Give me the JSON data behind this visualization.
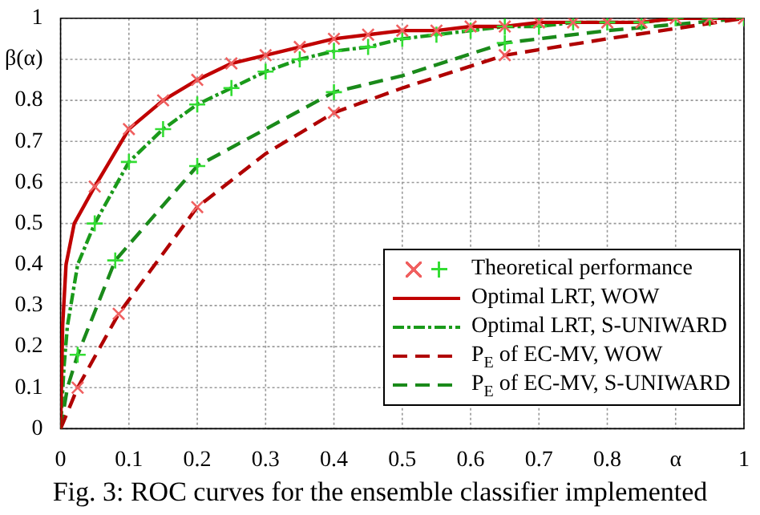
{
  "chart_data": {
    "type": "line",
    "xlim": [
      0,
      1
    ],
    "xticks": [
      0,
      0.1,
      0.2,
      0.3,
      0.4,
      0.5,
      0.6,
      0.7,
      0.8,
      {
        "value": 0.9,
        "label": "α"
      },
      1
    ],
    "ylim": [
      0,
      1
    ],
    "yticks": [
      0,
      0.1,
      0.2,
      0.3,
      0.4,
      0.5,
      0.6,
      0.7,
      0.8,
      {
        "value": 0.9,
        "label": "β(α)"
      },
      1
    ],
    "grid": true,
    "legend": "bottom right",
    "annotations": [
      "Fig. 3: ROC curves for the ensemble classifier implemented"
    ],
    "series": [
      {
        "type": "scatter",
        "name": "Theoretical performance",
        "color": "#f06060",
        "marker": "x",
        "x": [
          0.05,
          0.1,
          0.15,
          0.2,
          0.25,
          0.3,
          0.35,
          0.4,
          0.45,
          0.5,
          0.55,
          0.6,
          0.65,
          0.7,
          0.75,
          0.8,
          0.85,
          0.9,
          0.95,
          1,
          0.025,
          0.085,
          0.2,
          0.4,
          0.65
        ],
        "values": [
          0.59,
          0.73,
          0.8,
          0.85,
          0.89,
          0.91,
          0.93,
          0.95,
          0.96,
          0.97,
          0.97,
          0.98,
          0.98,
          0.99,
          0.99,
          0.99,
          0.99,
          1,
          1,
          1,
          0.1,
          0.28,
          0.54,
          0.77,
          0.91
        ]
      },
      {
        "type": "scatter",
        "color": "#33dd33",
        "marker": "cross",
        "x": [
          0.05,
          0.1,
          0.15,
          0.2,
          0.25,
          0.3,
          0.35,
          0.4,
          0.45,
          0.5,
          0.55,
          0.6,
          0.65,
          0.7,
          0.75,
          0.8,
          0.85,
          0.9,
          0.95,
          1,
          0.025,
          0.08,
          0.2,
          0.4,
          0.65
        ],
        "values": [
          0.5,
          0.65,
          0.73,
          0.79,
          0.83,
          0.87,
          0.9,
          0.92,
          0.93,
          0.95,
          0.96,
          0.97,
          0.98,
          0.98,
          0.99,
          0.99,
          0.99,
          1,
          1,
          1,
          0.18,
          0.41,
          0.64,
          0.82,
          0.94
        ]
      },
      {
        "name": "Optimal LRT, WOW",
        "color": "#c00000",
        "line_style": "solid",
        "x": [
          0,
          0.003,
          0.008,
          0.02,
          0.05,
          0.1,
          0.15,
          0.2,
          0.25,
          0.3,
          0.35,
          0.4,
          0.45,
          0.5,
          0.55,
          0.6,
          0.65,
          0.7,
          0.75,
          0.8,
          0.85,
          0.9,
          0.95,
          1
        ],
        "values": [
          0,
          0.25,
          0.4,
          0.5,
          0.59,
          0.73,
          0.8,
          0.85,
          0.89,
          0.91,
          0.93,
          0.95,
          0.96,
          0.97,
          0.97,
          0.98,
          0.98,
          0.99,
          0.99,
          0.99,
          0.99,
          1,
          1,
          1
        ]
      },
      {
        "name": "Optimal LRT, S-UNIWARD",
        "color": "#1a9a1a",
        "line_style": "dashdot",
        "x": [
          0,
          0.005,
          0.01,
          0.025,
          0.05,
          0.1,
          0.15,
          0.2,
          0.25,
          0.3,
          0.35,
          0.4,
          0.45,
          0.5,
          0.55,
          0.6,
          0.65,
          0.7,
          0.75,
          0.8,
          0.85,
          0.9,
          0.95,
          1
        ],
        "values": [
          0,
          0.15,
          0.25,
          0.4,
          0.5,
          0.65,
          0.73,
          0.79,
          0.83,
          0.87,
          0.9,
          0.92,
          0.93,
          0.95,
          0.96,
          0.97,
          0.98,
          0.98,
          0.99,
          0.99,
          0.99,
          1,
          1,
          1
        ]
      },
      {
        "name": "P$_{E}$ of EC-MV, WOW",
        "color": "#b00000",
        "line_style": "dashed",
        "x": [
          0,
          0.025,
          0.085,
          0.2,
          0.3,
          0.4,
          0.5,
          0.65,
          0.8,
          1
        ],
        "values": [
          0,
          0.1,
          0.28,
          0.54,
          0.67,
          0.77,
          0.83,
          0.91,
          0.95,
          1
        ]
      },
      {
        "name": "P$_{E}$ of EC-MV, S-UNIWARD",
        "color": "#1a8a1a",
        "line_style": "dashed",
        "x": [
          0,
          0.01,
          0.025,
          0.08,
          0.2,
          0.3,
          0.4,
          0.5,
          0.65,
          0.8,
          1
        ],
        "values": [
          0,
          0.1,
          0.18,
          0.41,
          0.64,
          0.73,
          0.82,
          0.86,
          0.94,
          0.97,
          1
        ]
      }
    ]
  }
}
